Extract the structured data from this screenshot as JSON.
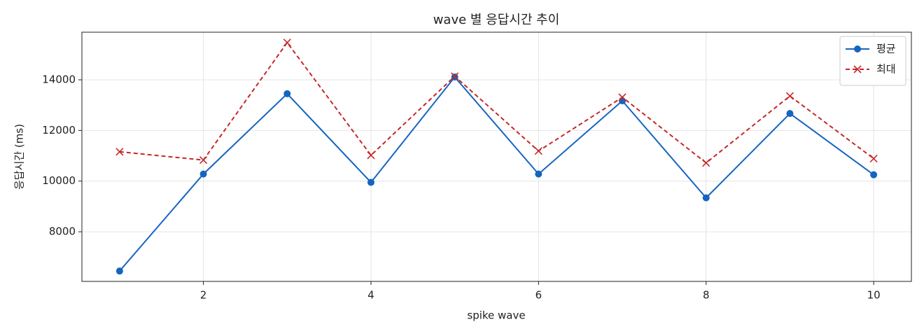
{
  "chart_data": {
    "type": "line",
    "title": "wave 별 응답시간 추이",
    "x_label": "spike wave",
    "y_label": "응답시간 (ms)",
    "x": [
      1,
      2,
      3,
      4,
      5,
      6,
      7,
      8,
      9,
      10
    ],
    "series": [
      {
        "name": "평균",
        "color": "#1565c0",
        "marker": "circle",
        "dash": false,
        "values": [
          6450,
          10280,
          13450,
          9950,
          14110,
          10280,
          13170,
          9340,
          12670,
          10250
        ]
      },
      {
        "name": "최대",
        "color": "#c62828",
        "marker": "x",
        "dash": true,
        "values": [
          11160,
          10830,
          15470,
          11020,
          14140,
          11190,
          13310,
          10720,
          13360,
          10890
        ]
      }
    ],
    "xlim": [
      0.55,
      10.45
    ],
    "ylim": [
      6040,
      15880
    ],
    "xticks": [
      2,
      4,
      6,
      8,
      10
    ],
    "yticks": [
      8000,
      10000,
      12000,
      14000
    ],
    "grid": true,
    "legend": "upper right"
  }
}
